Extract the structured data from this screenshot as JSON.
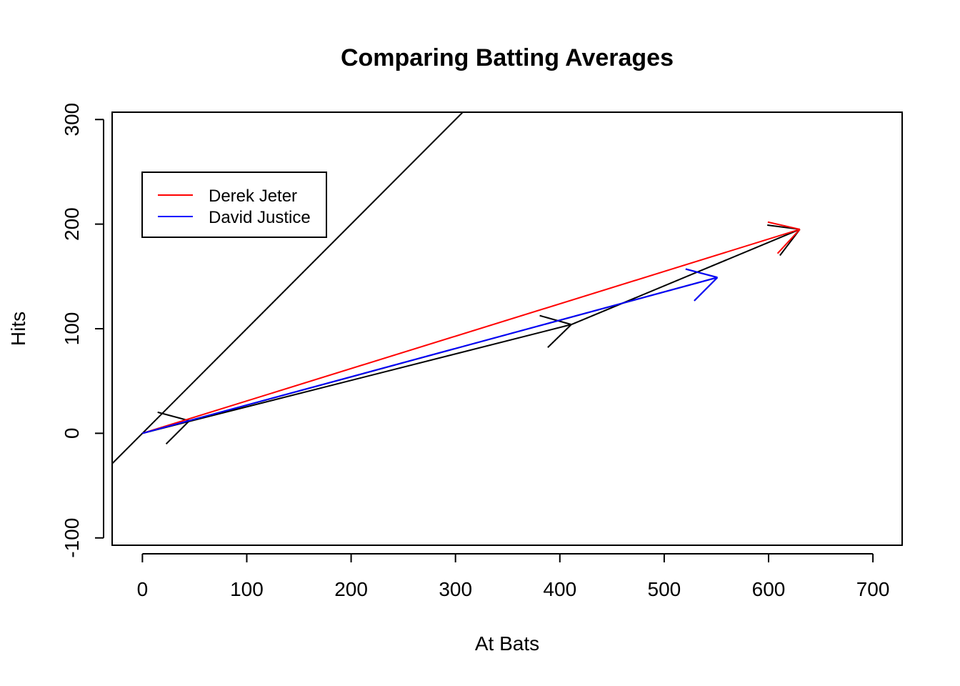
{
  "chart_data": {
    "type": "line",
    "title": "Comparing Batting Averages",
    "xlabel": "At Bats",
    "ylabel": "Hits",
    "xlim": [
      -29,
      728
    ],
    "ylim": [
      -107,
      307
    ],
    "x_ticks": [
      0,
      100,
      200,
      300,
      400,
      500,
      600,
      700
    ],
    "y_ticks": [
      -100,
      0,
      100,
      200,
      300
    ],
    "grid": false,
    "legend_position": "top-left",
    "colors": {
      "derek_jeter": "#ff0000",
      "david_justice": "#0000ff",
      "reference": "#000000"
    },
    "reference_line": {
      "slope": 1,
      "intercept": 0
    },
    "series": [
      {
        "name": "Derek Jeter",
        "color": "#ff0000",
        "x": [
          0,
          630
        ],
        "y": [
          0,
          195
        ]
      },
      {
        "name": "David Justice",
        "color": "#0000ff",
        "x": [
          0,
          551
        ],
        "y": [
          0,
          149
        ]
      }
    ],
    "component_vectors": [
      {
        "color": "#000000",
        "x": [
          0,
          45
        ],
        "y": [
          0,
          12
        ]
      },
      {
        "color": "#000000",
        "x": [
          0,
          411
        ],
        "y": [
          0,
          104
        ]
      },
      {
        "color": "#000000",
        "x": [
          45,
          551
        ],
        "y": [
          12,
          149
        ]
      },
      {
        "color": "#000000",
        "x": [
          411,
          630
        ],
        "y": [
          104,
          195
        ]
      }
    ]
  }
}
